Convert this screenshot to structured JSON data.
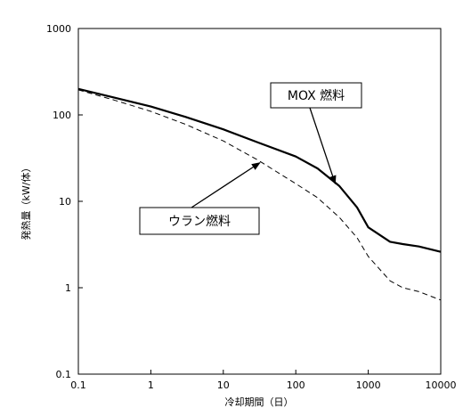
{
  "chart_data": {
    "type": "line",
    "xlabel": "冷却期間（日）",
    "ylabel": "発熱量（kW/体）",
    "x_scale": "log",
    "y_scale": "log",
    "xlim": [
      0.1,
      10000
    ],
    "ylim": [
      0.1,
      1000
    ],
    "x_ticks": [
      "0.1",
      "1",
      "10",
      "100",
      "1000",
      "10000"
    ],
    "y_ticks": [
      "0.1",
      "1",
      "10",
      "100",
      "1000"
    ],
    "grid": false,
    "legend": "none",
    "series": [
      {
        "name": "MOX 燃料",
        "style": "solid",
        "color": "#000000",
        "x": [
          0.1,
          0.3,
          1,
          3,
          10,
          30,
          100,
          200,
          400,
          700,
          1000,
          2000,
          3000,
          5000,
          10000
        ],
        "y": [
          200,
          160,
          125,
          95,
          68,
          48,
          33,
          24,
          15,
          8.5,
          5,
          3.4,
          3.2,
          3.0,
          2.6
        ]
      },
      {
        "name": "ウラン燃料",
        "style": "dashed",
        "color": "#000000",
        "x": [
          0.1,
          0.3,
          1,
          3,
          10,
          30,
          100,
          200,
          400,
          700,
          1000,
          2000,
          3000,
          5000,
          10000
        ],
        "y": [
          195,
          150,
          110,
          78,
          50,
          30,
          16,
          11,
          6.5,
          3.8,
          2.3,
          1.2,
          1.0,
          0.9,
          0.72
        ]
      }
    ],
    "annotations": [
      {
        "text": "MOX 燃料",
        "target_series": "MOX 燃料",
        "point": [
          350,
          16
        ]
      },
      {
        "text": "ウラン燃料",
        "target_series": "ウラン燃料",
        "point": [
          32,
          28
        ]
      }
    ]
  }
}
